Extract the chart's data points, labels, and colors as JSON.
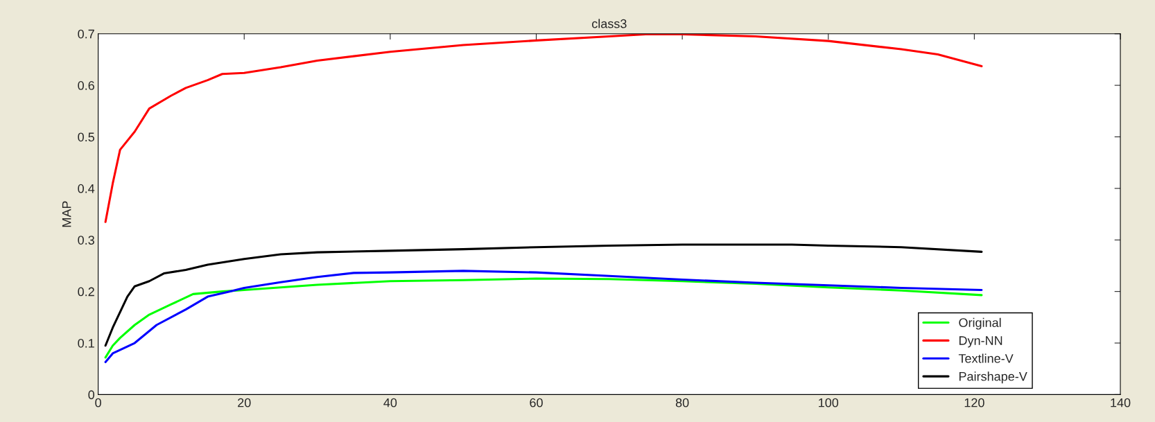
{
  "chart_data": {
    "type": "line",
    "title": "class3",
    "ylabel": "MAP",
    "xlim": [
      0,
      140
    ],
    "xticks": [
      0,
      20,
      40,
      60,
      80,
      100,
      120,
      140
    ],
    "ylim": [
      0,
      0.7
    ],
    "yticks": [
      0,
      0.1,
      0.2,
      0.3,
      0.4,
      0.5,
      0.6,
      0.7
    ],
    "grid": false,
    "legend": "bottom right",
    "series": [
      {
        "name": "Original",
        "color": "#00ff00",
        "x": [
          1,
          2,
          3,
          5,
          7,
          10,
          13,
          17,
          20,
          30,
          40,
          50,
          60,
          70,
          80,
          90,
          100,
          110,
          121
        ],
        "values": [
          0.072,
          0.095,
          0.11,
          0.135,
          0.155,
          0.175,
          0.195,
          0.2,
          0.203,
          0.213,
          0.22,
          0.222,
          0.225,
          0.224,
          0.22,
          0.215,
          0.208,
          0.202,
          0.193
        ]
      },
      {
        "name": "Dyn-NN",
        "color": "#ff0000",
        "x": [
          1,
          2,
          3,
          5,
          7,
          10,
          12,
          15,
          17,
          20,
          25,
          30,
          40,
          50,
          60,
          70,
          75,
          80,
          90,
          100,
          110,
          115,
          121
        ],
        "values": [
          0.335,
          0.41,
          0.475,
          0.51,
          0.555,
          0.58,
          0.595,
          0.61,
          0.622,
          0.624,
          0.635,
          0.648,
          0.665,
          0.678,
          0.687,
          0.695,
          0.699,
          0.699,
          0.695,
          0.686,
          0.67,
          0.66,
          0.637
        ]
      },
      {
        "name": "Textline-V",
        "color": "#0000ff",
        "x": [
          1,
          2,
          5,
          8,
          12,
          15,
          18,
          20,
          25,
          30,
          35,
          40,
          50,
          60,
          70,
          80,
          90,
          100,
          110,
          121
        ],
        "values": [
          0.063,
          0.08,
          0.1,
          0.135,
          0.165,
          0.19,
          0.2,
          0.207,
          0.218,
          0.228,
          0.236,
          0.237,
          0.24,
          0.237,
          0.23,
          0.223,
          0.217,
          0.212,
          0.207,
          0.203
        ]
      },
      {
        "name": "Pairshape-V",
        "color": "#000000",
        "x": [
          1,
          2,
          3,
          4,
          5,
          7,
          9,
          12,
          15,
          20,
          25,
          30,
          40,
          50,
          60,
          70,
          80,
          95,
          100,
          110,
          121
        ],
        "values": [
          0.095,
          0.13,
          0.16,
          0.19,
          0.21,
          0.22,
          0.235,
          0.242,
          0.252,
          0.263,
          0.272,
          0.276,
          0.279,
          0.282,
          0.286,
          0.289,
          0.291,
          0.291,
          0.289,
          0.286,
          0.277
        ]
      }
    ]
  }
}
